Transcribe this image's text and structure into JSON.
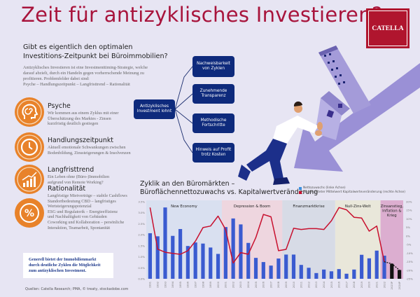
{
  "header": {
    "title": "Zeit für antizyklisches Investieren?",
    "logo_text": "CATELLA"
  },
  "intro": {
    "subtitle_line1": "Gibt es eigentlich den optimalen",
    "subtitle_line2": "Investitions-Zeitpunkt bei Büroimmobilien?",
    "text": "Antizyklisches Investieren ist eine Investmenttiming-Strategie, welche darauf abzielt, durch ein Handeln gegen vorherrschende Meinung zu profitieren. Problemfelder dabei sind:",
    "text_line2": "Psyche – Handlungszeitpunkt – Langfristtrend – Rationalität"
  },
  "factors": [
    {
      "icon": "head-spiral-icon",
      "title": "Psyche",
      "text": "Wir kommen aus einem Zyklus mit einer Überschätzung des Marktes - Zinsen kurzfristig deutlich gestiegen"
    },
    {
      "icon": "clock-icon",
      "title": "Handlungszeitpunkt",
      "text": "Aktuell emotionale Schwankungen zwischen Bodenbildung, Zinssteigerungen & Insolvenzen"
    },
    {
      "icon": "growth-chart-icon",
      "title": "Langfristtrend",
      "text": "Ein Leben ohne (Büro-)Immobilien aufgrund von Remote Working?"
    },
    {
      "icon": "percent-icon",
      "title": "Rationalität",
      "lines": [
        "Langfristige Mietverträge – stabile Cashflows",
        "Standortbedeutung CBD – langfristiges",
        "Wertsteigerungspotenzial",
        "ESG und Regulatorik – Energieeffizienz",
        "und Nachhaltigkeit von Gebäuden",
        "Coworking und Kollaboration – persönliche",
        "Interaktion, Teamarbeit, Spontanität"
      ]
    }
  ],
  "callout": "Generell bietet der Immobilienmarkt durch deutliche Zyklen die Möglichkeit zum antizyklischen Investment.",
  "source": "Quellen: Catella Research; PMA, © treaty, stockadobe.com",
  "diagram": {
    "center": "Antizyklisches Investment lohnt",
    "branches": [
      "Nachweisbarkeit von Zyklen",
      "Zunehmende Transparenz",
      "Methodische Fortschritte",
      "Hinweis auf Profit trotz Kosten"
    ]
  },
  "colors": {
    "title": "#a8143c",
    "accent_orange": "#e8822a",
    "navy": "#0e2a7c",
    "bar_blue": "#3a5bd0",
    "line_red": "#c8102e",
    "forecast_black": "#111111",
    "arrow_purple": "#9a90d6"
  },
  "chart_data": {
    "type": "bar",
    "title_line1": "Zyklik an den Büromärkten –",
    "title_line2": "Büroflächennettozuwachs vs. Kapitalwertveränderung",
    "categories": [
      "1991",
      "1992",
      "1993",
      "1994",
      "1995",
      "1996",
      "1997",
      "1998",
      "1999",
      "2000",
      "2001",
      "2002",
      "2003",
      "2004",
      "2005",
      "2006",
      "2007",
      "2008",
      "2009",
      "2010",
      "2011",
      "2012",
      "2013",
      "2014",
      "2015",
      "2016",
      "2017",
      "2018",
      "2019",
      "2020",
      "2021",
      "2022",
      "2023P",
      "2024P"
    ],
    "series": [
      {
        "name": "Nettozuwachs (linke Achse)",
        "kind": "bar",
        "axis": "left",
        "values": [
          2.07,
          1.93,
          3.24,
          1.95,
          2.26,
          1.49,
          1.65,
          1.6,
          1.42,
          1.13,
          2.35,
          2.74,
          2.47,
          1.63,
          0.95,
          0.76,
          0.6,
          0.92,
          1.1,
          1.1,
          0.63,
          0.5,
          0.26,
          0.42,
          0.34,
          0.44,
          0.23,
          0.42,
          1.09,
          0.93,
          1.28,
          1.05,
          0.68,
          0.4
        ]
      },
      {
        "name": "ungewichteter Mittelwert Kapitalwerteveränderung (rechte Achse)",
        "kind": "line",
        "axis": "right",
        "values": [
          16.6,
          -7.7,
          -9.5,
          -10.2,
          -10.7,
          -8.6,
          -3.0,
          4.9,
          5.8,
          11.6,
          3.8,
          -15.8,
          -9.7,
          -10.7,
          -0.9,
          12.6,
          11.2,
          -8.6,
          -7.8,
          4.5,
          3.8,
          4.3,
          4.3,
          3.8,
          8.9,
          16.6,
          15.3,
          10.9,
          10.5,
          2.8,
          5.8,
          -15.1,
          -16.2,
          -19.9
        ]
      }
    ],
    "forecast_categories": [
      "2023P",
      "2024P"
    ],
    "left_axis": {
      "ylim": [
        0,
        3.5
      ],
      "ticks": [
        "0.0%",
        "0.5%",
        "1.0%",
        "1.5%",
        "2.0%",
        "2.5%",
        "3.0%",
        "3.5%"
      ]
    },
    "right_axis": {
      "ylim": [
        -25,
        20
      ],
      "ticks": [
        "-25%",
        "-20%",
        "-15%",
        "-10%",
        "-5%",
        "0%",
        "5%",
        "10%",
        "15%",
        "20%"
      ]
    },
    "phases": [
      {
        "label": "New Economy",
        "from": "1991",
        "to": "2000",
        "color": "#d9e0f0"
      },
      {
        "label": "Depression & Boom",
        "from": "2001",
        "to": "2008",
        "color": "#eed6df"
      },
      {
        "label": "Finanzmarktkrise",
        "from": "2009",
        "to": "2015",
        "color": "#d7dbe6"
      },
      {
        "label": "Null-Zins-Welt",
        "from": "2016",
        "to": "2021",
        "color": "#e9e7da"
      },
      {
        "label": "Zinsanstieg, Inflation & Krieg",
        "from": "2022",
        "to": "2024P",
        "color": "#dcaed0"
      }
    ],
    "legend_position": "top-right",
    "grid": false
  }
}
